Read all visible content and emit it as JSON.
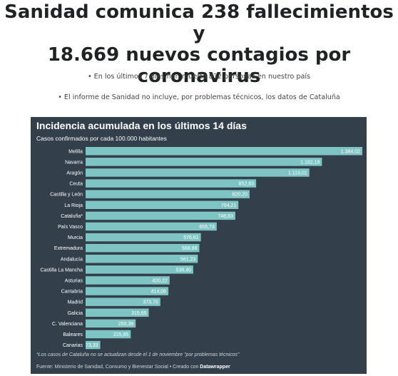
{
  "headline": {
    "line1": "Sanidad comunica 238 fallecimientos y",
    "line2": "18.669 nuevos contagios por",
    "line3": "coronavirus"
  },
  "bullets": [
    "• En los últimos 7 días han muerto 832 personas en nuestro país",
    "• El informe de Sanidad no incluye, por problemas técnicos, los datos de Cataluña"
  ],
  "chart_data": {
    "type": "bar",
    "orientation": "horizontal",
    "title": "Incidencia acumulada en los últimos 14 días",
    "subtitle": "Casos confirmados por cada 100.000 habitantes",
    "categories": [
      "Melilla",
      "Navarra",
      "Aragón",
      "Ceuta",
      "Castilla y León",
      "La Rioja",
      "Cataluña*",
      "País Vasco",
      "Murcia",
      "Extremadura",
      "Andalucía",
      "Castilla La Mancha",
      "Asturias",
      "Cantabria",
      "Madrid",
      "Galicia",
      "C. Valenciana",
      "Baleares",
      "Canarias"
    ],
    "values": [
      1384.02,
      1182.18,
      1119.01,
      852.83,
      820.2,
      764.21,
      748.83,
      655.73,
      576.61,
      568.88,
      561.23,
      538.4,
      420.22,
      414.06,
      373.7,
      315.65,
      250.39,
      225.85,
      73.33
    ],
    "value_labels": [
      "1.384,02",
      "1.182,18",
      "1.119,01",
      "852,83",
      "820,20",
      "764,21",
      "748,83",
      "655,73",
      "576,61",
      "568,88",
      "561,23",
      "538,40",
      "420,22",
      "414,06",
      "373,70",
      "315,65",
      "250,39",
      "225,85",
      "73,33"
    ],
    "xlim": [
      0,
      1384.02
    ],
    "bar_color": "#7ec4c5",
    "background_color": "#333f4b",
    "footnote": "*Los casos de Cataluña no se actualizan desde el 1 de noviembre \"por problemas técnicos\"",
    "source_prefix": "Fuente: Ministerio de Sanidad, Consumo y Bienestar Social • Creado con ",
    "source_tool": "Datawrapper"
  }
}
